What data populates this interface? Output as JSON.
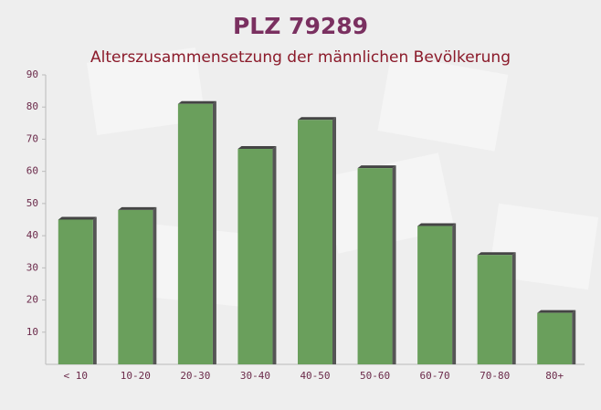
{
  "chart_data": {
    "type": "bar",
    "title": "PLZ 79289",
    "subtitle": "Alterszusammensetzung der männlichen Bevölkerung",
    "categories": [
      "< 10",
      "10-20",
      "20-30",
      "30-40",
      "40-50",
      "50-60",
      "60-70",
      "70-80",
      "80+"
    ],
    "values": [
      45,
      48,
      81,
      67,
      76,
      61,
      43,
      34,
      16
    ],
    "color": "#6a9f5c",
    "ylim": [
      0,
      90
    ],
    "yticks": [
      10,
      20,
      30,
      40,
      50,
      60,
      70,
      80,
      90
    ],
    "grid": false
  }
}
